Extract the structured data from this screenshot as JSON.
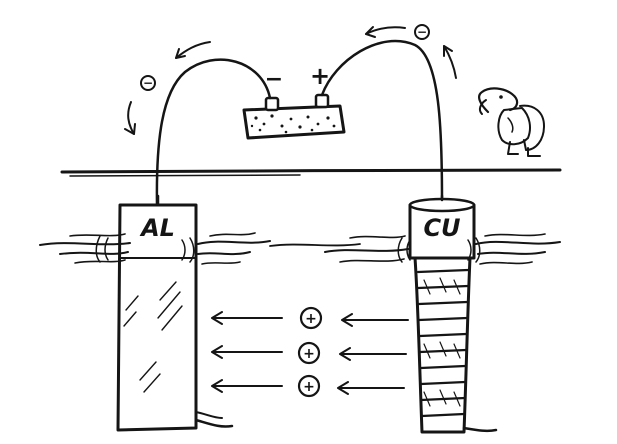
{
  "diagram": {
    "left_electrode": {
      "label": "AL",
      "polarity": "-"
    },
    "right_electrode": {
      "label": "CU",
      "polarity": "+"
    },
    "battery": {
      "negative_label": "−",
      "positive_label": "+"
    },
    "electron_symbol": "−",
    "ion_symbol": "+",
    "ion_rows": 3,
    "ink_color": "#151515",
    "background_color": "#ffffff"
  }
}
